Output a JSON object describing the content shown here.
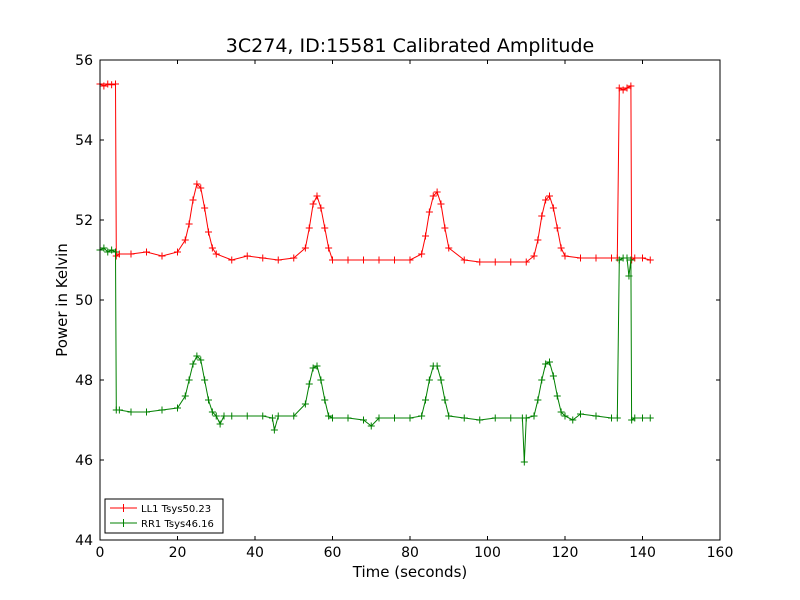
{
  "chart_data": {
    "type": "line",
    "title": "3C274, ID:15581 Calibrated Amplitude",
    "xlabel": "Time (seconds)",
    "ylabel": "Power in Kelvin",
    "xlim": [
      0,
      160
    ],
    "ylim": [
      44,
      56
    ],
    "xticks": [
      0,
      20,
      40,
      60,
      80,
      100,
      120,
      140,
      160
    ],
    "yticks": [
      44,
      46,
      48,
      50,
      52,
      54,
      56
    ],
    "grid": false,
    "legend_position": "lower-left",
    "marker": "+",
    "series": [
      {
        "name": "LL1 Tsys50.23",
        "color": "#ff0000",
        "x": [
          0,
          1,
          2,
          3,
          4,
          4.2,
          5,
          8,
          12,
          16,
          20,
          22,
          23,
          24,
          25,
          26,
          27,
          28,
          29,
          30,
          34,
          38,
          42,
          46,
          50,
          53,
          54,
          55,
          56,
          57,
          58,
          59,
          60,
          64,
          68,
          72,
          76,
          80,
          83,
          84,
          85,
          86,
          87,
          88,
          89,
          90,
          94,
          98,
          102,
          106,
          110,
          112,
          113,
          114,
          115,
          116,
          117,
          118,
          119,
          120,
          124,
          128,
          132,
          133.5,
          134,
          135,
          136,
          137,
          137.2,
          138,
          140,
          142
        ],
        "y": [
          55.4,
          55.35,
          55.4,
          55.38,
          55.4,
          51.1,
          51.15,
          51.15,
          51.2,
          51.1,
          51.2,
          51.5,
          51.9,
          52.5,
          52.9,
          52.8,
          52.3,
          51.7,
          51.3,
          51.15,
          51.0,
          51.1,
          51.05,
          51.0,
          51.05,
          51.3,
          51.8,
          52.4,
          52.6,
          52.3,
          51.8,
          51.3,
          51.0,
          51.0,
          51.0,
          51.0,
          51.0,
          51.0,
          51.15,
          51.6,
          52.2,
          52.6,
          52.7,
          52.4,
          51.8,
          51.3,
          51.0,
          50.95,
          50.95,
          50.95,
          50.95,
          51.1,
          51.5,
          52.1,
          52.5,
          52.6,
          52.3,
          51.8,
          51.3,
          51.1,
          51.05,
          51.05,
          51.05,
          51.05,
          55.3,
          55.25,
          55.3,
          55.35,
          51.0,
          51.05,
          51.05,
          51.0
        ]
      },
      {
        "name": "RR1 Tsys46.16",
        "color": "#008000",
        "x": [
          0,
          1,
          2,
          3,
          4,
          4.2,
          5,
          8,
          12,
          16,
          20,
          22,
          23,
          24,
          25,
          26,
          27,
          28,
          29,
          30,
          31,
          32,
          34,
          38,
          42,
          44.5,
          45,
          46,
          50,
          53,
          54,
          55,
          56,
          57,
          58,
          59,
          60,
          64,
          68,
          70,
          72,
          76,
          80,
          83,
          84,
          85,
          86,
          87,
          88,
          89,
          90,
          94,
          98,
          102,
          106,
          109,
          109.5,
          110,
          112,
          113,
          114,
          115,
          116,
          117,
          118,
          119,
          120,
          122,
          124,
          128,
          132,
          133.5,
          134,
          135,
          136,
          136.5,
          137,
          137.2,
          138,
          140,
          142
        ],
        "y": [
          51.25,
          51.3,
          51.2,
          51.25,
          51.2,
          47.25,
          47.25,
          47.2,
          47.2,
          47.25,
          47.3,
          47.6,
          48.0,
          48.4,
          48.6,
          48.5,
          48.0,
          47.5,
          47.2,
          47.1,
          46.9,
          47.1,
          47.1,
          47.1,
          47.1,
          47.05,
          46.75,
          47.1,
          47.1,
          47.4,
          47.9,
          48.3,
          48.35,
          48.0,
          47.5,
          47.1,
          47.05,
          47.05,
          47.0,
          46.85,
          47.05,
          47.05,
          47.05,
          47.1,
          47.5,
          48.0,
          48.35,
          48.35,
          48.0,
          47.5,
          47.1,
          47.05,
          47.0,
          47.05,
          47.05,
          47.05,
          45.95,
          47.05,
          47.1,
          47.5,
          48.0,
          48.4,
          48.45,
          48.1,
          47.6,
          47.2,
          47.1,
          47.0,
          47.15,
          47.1,
          47.05,
          47.05,
          51.0,
          51.05,
          51.05,
          50.6,
          51.0,
          47.0,
          47.05,
          47.05,
          47.05
        ]
      }
    ]
  }
}
